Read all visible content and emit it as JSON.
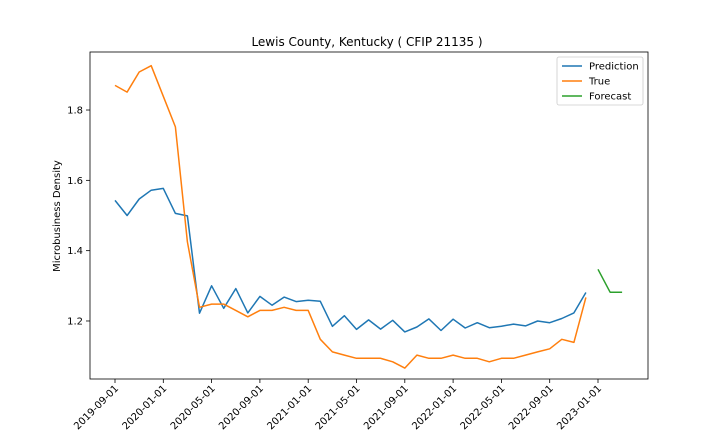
{
  "chart_data": {
    "type": "line",
    "title": "Lewis County, Kentucky ( CFIP 21135 )",
    "xlabel": "",
    "ylabel": "Microbusiness Density",
    "x_ticks": [
      "2019-09-01",
      "2020-01-01",
      "2020-05-01",
      "2020-09-01",
      "2021-01-01",
      "2021-05-01",
      "2021-09-01",
      "2022-01-01",
      "2022-05-01",
      "2022-09-01",
      "2023-01-01"
    ],
    "y_ticks": [
      "1.2",
      "1.4",
      "1.6",
      "1.8"
    ],
    "y_tick_values": [
      1.2,
      1.4,
      1.6,
      1.8
    ],
    "ylim": [
      1.035,
      1.965
    ],
    "legend_position": "top-right",
    "grid": false,
    "series": [
      {
        "name": "Prediction",
        "color": "#1f77b4",
        "x": [
          "2019-09-01",
          "2019-10-01",
          "2019-11-01",
          "2019-12-01",
          "2020-01-01",
          "2020-02-01",
          "2020-03-01",
          "2020-04-01",
          "2020-05-01",
          "2020-06-01",
          "2020-07-01",
          "2020-08-01",
          "2020-09-01",
          "2020-10-01",
          "2020-11-01",
          "2020-12-01",
          "2021-01-01",
          "2021-02-01",
          "2021-03-01",
          "2021-04-01",
          "2021-05-01",
          "2021-06-01",
          "2021-07-01",
          "2021-08-01",
          "2021-09-01",
          "2021-10-01",
          "2021-11-01",
          "2021-12-01",
          "2022-01-01",
          "2022-02-01",
          "2022-03-01",
          "2022-04-01",
          "2022-05-01",
          "2022-06-01",
          "2022-07-01",
          "2022-08-01",
          "2022-09-01",
          "2022-10-01",
          "2022-11-01",
          "2022-12-01"
        ],
        "values": [
          1.543,
          1.5,
          1.547,
          1.572,
          1.577,
          1.506,
          1.499,
          1.222,
          1.3,
          1.236,
          1.292,
          1.223,
          1.27,
          1.245,
          1.268,
          1.255,
          1.259,
          1.256,
          1.185,
          1.215,
          1.176,
          1.203,
          1.177,
          1.202,
          1.169,
          1.183,
          1.206,
          1.173,
          1.205,
          1.18,
          1.195,
          1.181,
          1.185,
          1.191,
          1.186,
          1.2,
          1.195,
          1.207,
          1.223,
          1.281
        ]
      },
      {
        "name": "True",
        "color": "#ff7f0e",
        "x": [
          "2019-09-01",
          "2019-10-01",
          "2019-11-01",
          "2019-12-01",
          "2020-01-01",
          "2020-02-01",
          "2020-03-01",
          "2020-04-01",
          "2020-05-01",
          "2020-06-01",
          "2020-07-01",
          "2020-08-01",
          "2020-09-01",
          "2020-10-01",
          "2020-11-01",
          "2020-12-01",
          "2021-01-01",
          "2021-02-01",
          "2021-03-01",
          "2021-04-01",
          "2021-05-01",
          "2021-06-01",
          "2021-07-01",
          "2021-08-01",
          "2021-09-01",
          "2021-10-01",
          "2021-11-01",
          "2021-12-01",
          "2022-01-01",
          "2022-02-01",
          "2022-03-01",
          "2022-04-01",
          "2022-05-01",
          "2022-06-01",
          "2022-07-01",
          "2022-08-01",
          "2022-09-01",
          "2022-10-01",
          "2022-11-01",
          "2022-12-01"
        ],
        "values": [
          1.87,
          1.851,
          1.908,
          1.926,
          1.839,
          1.752,
          1.425,
          1.239,
          1.248,
          1.248,
          1.23,
          1.212,
          1.23,
          1.23,
          1.239,
          1.23,
          1.23,
          1.148,
          1.112,
          1.103,
          1.094,
          1.094,
          1.094,
          1.084,
          1.066,
          1.103,
          1.094,
          1.094,
          1.103,
          1.094,
          1.094,
          1.084,
          1.094,
          1.094,
          1.103,
          1.112,
          1.121,
          1.148,
          1.139,
          1.267
        ]
      },
      {
        "name": "Forecast",
        "color": "#2ca02c",
        "x": [
          "2023-01-01",
          "2023-02-01",
          "2023-03-01"
        ],
        "values": [
          1.347,
          1.282,
          1.282
        ]
      }
    ]
  }
}
